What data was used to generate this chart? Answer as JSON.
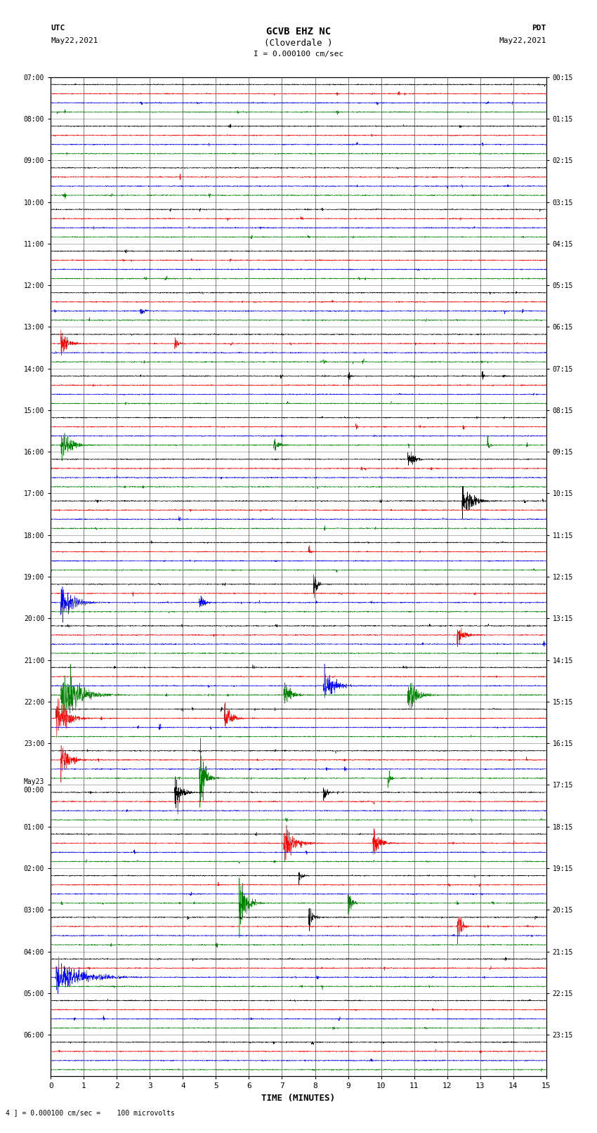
{
  "title_line1": "GCVB EHZ NC",
  "title_line2": "(Cloverdale )",
  "title_line3": "I = 0.000100 cm/sec",
  "left_label_top": "UTC",
  "left_label_date": "May22,2021",
  "right_label_top": "PDT",
  "right_label_date": "May22,2021",
  "xlabel": "TIME (MINUTES)",
  "bottom_note": "4 ] = 0.000100 cm/sec =    100 microvolts",
  "num_rows": 24,
  "traces_per_row": 4,
  "colors": [
    "black",
    "red",
    "blue",
    "green"
  ],
  "xlim": [
    0,
    15
  ],
  "xticks": [
    0,
    1,
    2,
    3,
    4,
    5,
    6,
    7,
    8,
    9,
    10,
    11,
    12,
    13,
    14,
    15
  ],
  "left_times": [
    "07:00",
    "08:00",
    "09:00",
    "10:00",
    "11:00",
    "12:00",
    "13:00",
    "14:00",
    "15:00",
    "16:00",
    "17:00",
    "18:00",
    "19:00",
    "20:00",
    "21:00",
    "22:00",
    "23:00",
    "May23\n00:00",
    "01:00",
    "02:00",
    "03:00",
    "04:00",
    "05:00",
    "06:00"
  ],
  "right_times": [
    "00:15",
    "01:15",
    "02:15",
    "03:15",
    "04:15",
    "05:15",
    "06:15",
    "07:15",
    "08:15",
    "09:15",
    "10:15",
    "11:15",
    "12:15",
    "13:15",
    "14:15",
    "15:15",
    "16:15",
    "17:15",
    "18:15",
    "19:15",
    "20:15",
    "21:15",
    "22:15",
    "23:15"
  ],
  "fig_width": 8.5,
  "fig_height": 16.13,
  "background_color": "white",
  "seed": 42
}
